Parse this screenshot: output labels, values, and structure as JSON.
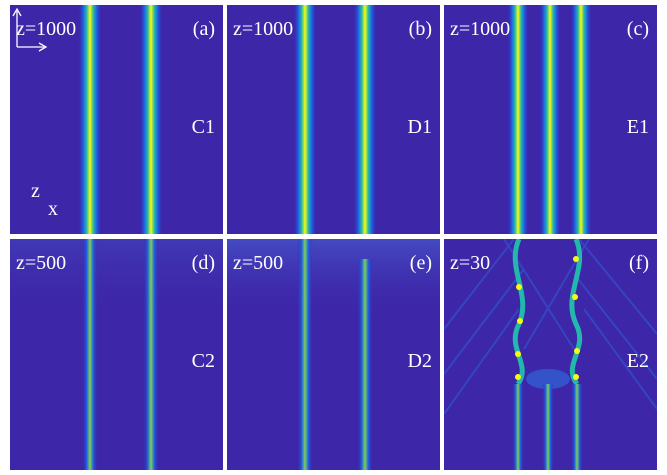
{
  "panels": [
    {
      "id": "a",
      "z_label": "z=1000",
      "letter": "(a)",
      "name": "C1"
    },
    {
      "id": "b",
      "z_label": "z=1000",
      "letter": "(b)",
      "name": "D1"
    },
    {
      "id": "c",
      "z_label": "z=1000",
      "letter": "(c)",
      "name": "E1"
    },
    {
      "id": "d",
      "z_label": "z=500",
      "letter": "(d)",
      "name": "C2"
    },
    {
      "id": "e",
      "z_label": "z=500",
      "letter": "(e)",
      "name": "D2"
    },
    {
      "id": "f",
      "z_label": "z=30",
      "letter": "(f)",
      "name": "E2"
    }
  ],
  "axis_indicator": {
    "vertical": "z",
    "horizontal": "x"
  },
  "colors": {
    "background": "#3d26a8",
    "beam_core": "#f9fb0e",
    "beam_mid": "#23b8ab",
    "beam_edge": "#1e63e6"
  }
}
